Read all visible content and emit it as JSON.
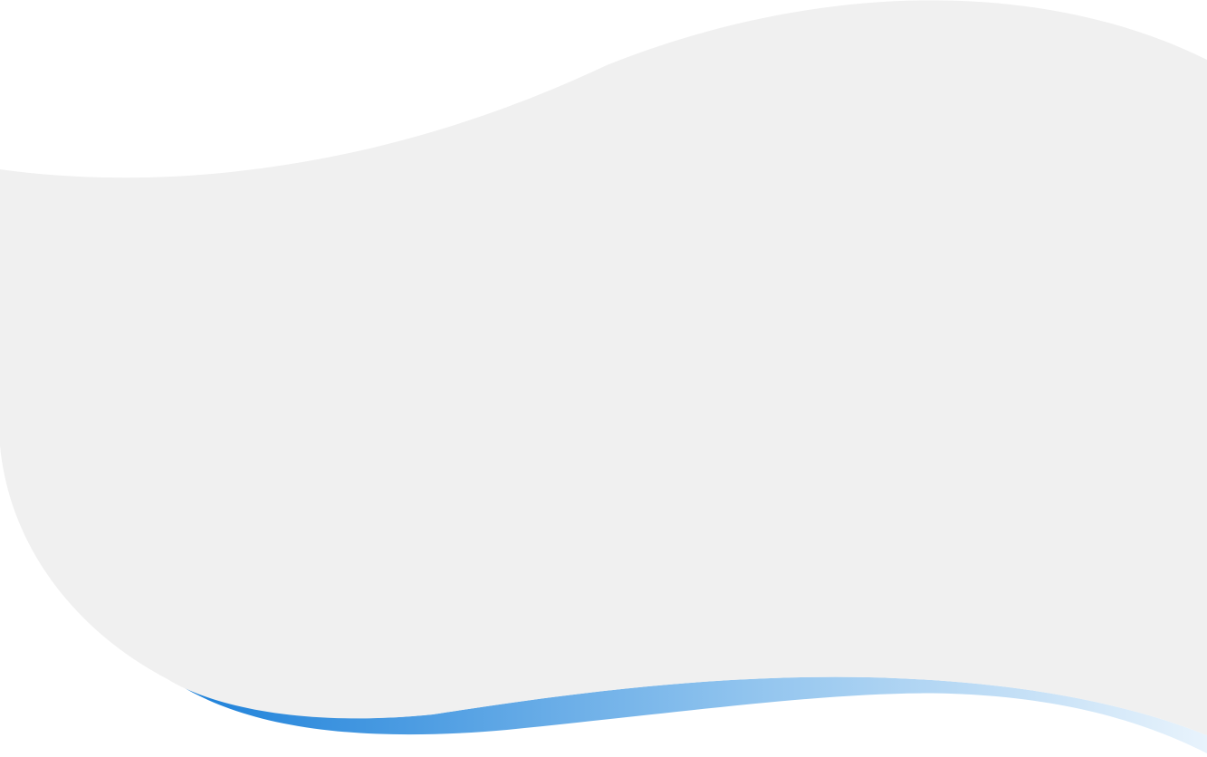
{
  "colors": {
    "page_background": "#ffffff",
    "panel_fill": "#f0f0f0",
    "accent_gradient_start": "#1a7fd9",
    "accent_gradient_mid": "#8fc3ee",
    "accent_gradient_end": "#e8f3fc"
  },
  "shapes": {
    "panel": "wave-panel",
    "accent": "wave-accent-stripe"
  }
}
